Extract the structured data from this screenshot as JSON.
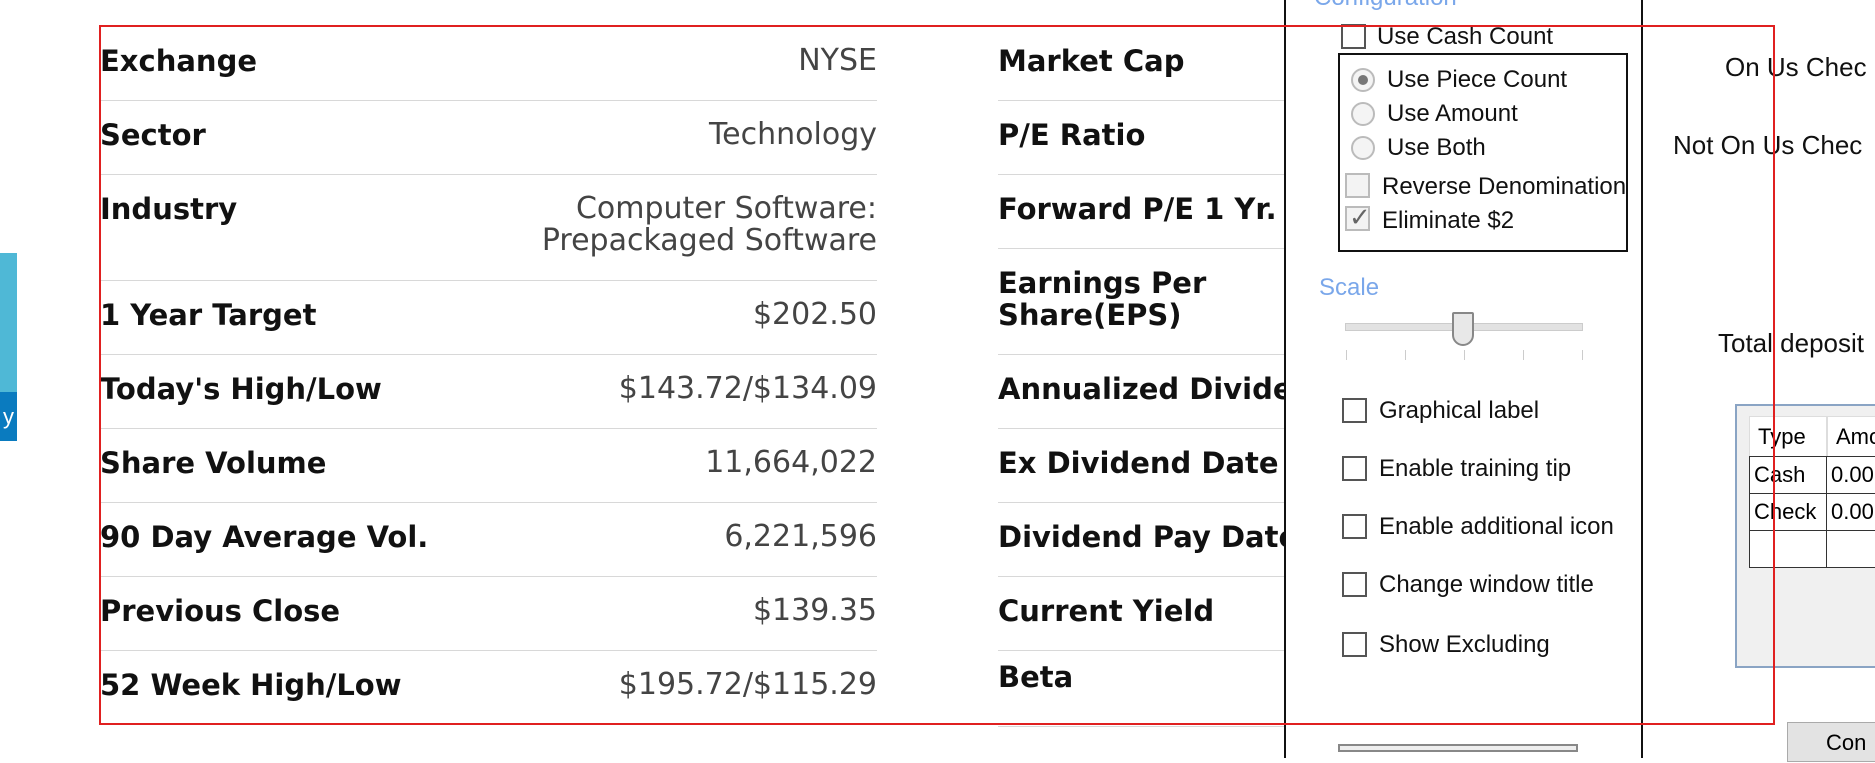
{
  "left_strip": {
    "text": "y"
  },
  "stock_info": {
    "left_rows": [
      {
        "label": "Exchange",
        "value": "NYSE"
      },
      {
        "label": "Sector",
        "value": "Technology"
      },
      {
        "label": "Industry",
        "value": "Computer Software:\nPrepackaged Software"
      },
      {
        "label": "1 Year Target",
        "value": "$202.50"
      },
      {
        "label": "Today's High/Low",
        "value": "$143.72/$134.09"
      },
      {
        "label": "Share Volume",
        "value": "11,664,022"
      },
      {
        "label": "90 Day Average Vol.",
        "value": "6,221,596"
      },
      {
        "label": "Previous Close",
        "value": "$139.35"
      },
      {
        "label": "52 Week High/Low",
        "value": "$195.72/$115.29"
      }
    ],
    "right_rows": [
      {
        "label": "Market Cap"
      },
      {
        "label": "P/E Ratio"
      },
      {
        "label": "Forward P/E 1 Yr."
      },
      {
        "label": "Earnings Per\nShare(EPS)"
      },
      {
        "label": "Annualized Dividend"
      },
      {
        "label": "Ex Dividend Date"
      },
      {
        "label": "Dividend Pay Date"
      },
      {
        "label": "Current Yield"
      },
      {
        "label": "Beta"
      }
    ]
  },
  "config_panel": {
    "title": "Configuration",
    "use_cash_count": "Use Cash Count",
    "radios": [
      {
        "label": "Use Piece Count",
        "selected": true
      },
      {
        "label": "Use Amount",
        "selected": false
      },
      {
        "label": "Use Both",
        "selected": false
      }
    ],
    "reverse_denomination": "Reverse Denomination",
    "eliminate_2": "Eliminate $2",
    "scale_label": "Scale",
    "checkboxes": [
      "Graphical label",
      "Enable training tip",
      "Enable additional icon",
      "Change window title",
      "Show Excluding"
    ]
  },
  "deposit_form": {
    "on_us": "On Us Chec",
    "not_on_us": "Not On Us Chec",
    "total": "Total deposit",
    "table": {
      "headers": [
        "Type",
        "Amo"
      ],
      "rows": [
        [
          "Cash",
          "0.00"
        ],
        [
          "Check",
          "0.00"
        ],
        [
          "",
          ""
        ]
      ]
    },
    "button": "Con"
  },
  "colors": {
    "accent_blue": "#7aa7ea",
    "selection_red": "#e02020",
    "strip_cyan": "#4fb8d6",
    "strip_blue": "#0a7bbf"
  }
}
